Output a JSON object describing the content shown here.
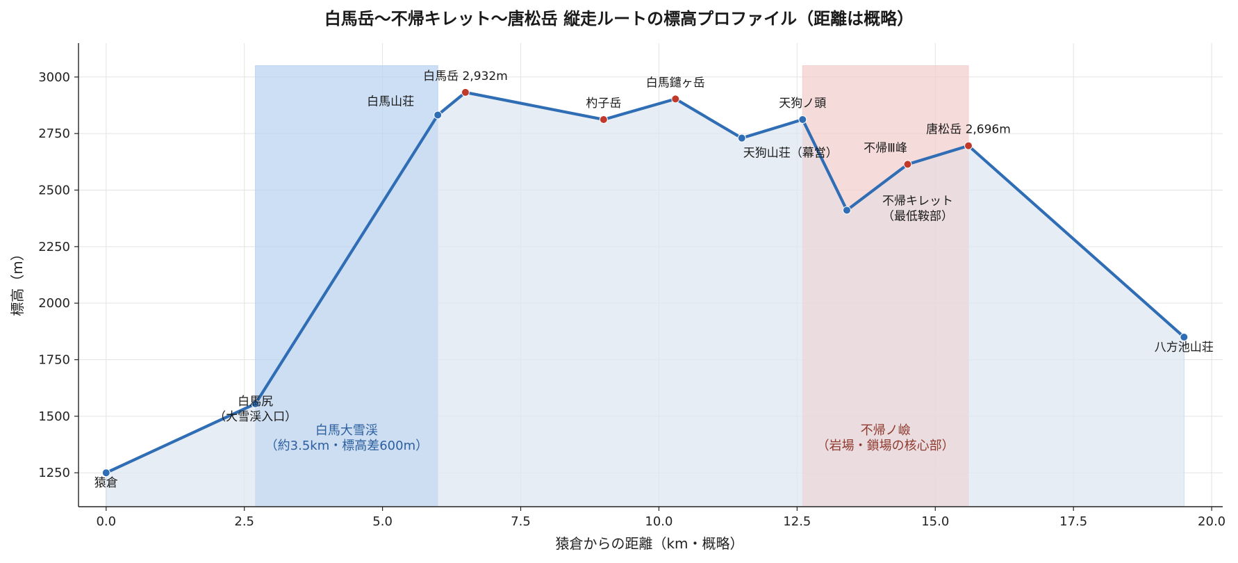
{
  "chart_data": {
    "type": "line",
    "title": "白馬岳〜不帰キレット〜唐松岳 縦走ルートの標高プロファイル（距離は概略）",
    "xlabel": "猿倉からの距離（km・概略）",
    "ylabel": "標高（m）",
    "xlim": [
      -0.5,
      20.2
    ],
    "ylim": [
      1100,
      3150
    ],
    "xticks": [
      0.0,
      2.5,
      5.0,
      7.5,
      10.0,
      12.5,
      15.0,
      17.5,
      20.0
    ],
    "xtick_labels": [
      "0.0",
      "2.5",
      "5.0",
      "7.5",
      "10.0",
      "12.5",
      "15.0",
      "17.5",
      "20.0"
    ],
    "yticks": [
      1250,
      1500,
      1750,
      2000,
      2250,
      2500,
      2750,
      3000
    ],
    "ytick_labels": [
      "1250",
      "1500",
      "1750",
      "2000",
      "2250",
      "2500",
      "2750",
      "3000"
    ],
    "grid": true,
    "line_color": "#2f6db5",
    "fill_color": "#dfe7f1",
    "points": [
      {
        "x": 0.0,
        "y": 1250,
        "label": "猿倉",
        "kind": "waypoint",
        "anchor": "below"
      },
      {
        "x": 2.7,
        "y": 1555,
        "label": "白馬尻\n（大雪渓入口）",
        "kind": "waypoint",
        "anchor": "at"
      },
      {
        "x": 6.0,
        "y": 2832,
        "label": "白馬山荘",
        "kind": "waypoint",
        "anchor": "left"
      },
      {
        "x": 6.5,
        "y": 2932,
        "label": "白馬岳 2,932m",
        "kind": "summit",
        "anchor": "above"
      },
      {
        "x": 9.0,
        "y": 2812,
        "label": "杓子岳",
        "kind": "summit",
        "anchor": "above"
      },
      {
        "x": 10.3,
        "y": 2903,
        "label": "白馬鑓ヶ岳",
        "kind": "summit",
        "anchor": "above"
      },
      {
        "x": 11.5,
        "y": 2730,
        "label": "天狗山荘（幕営）",
        "kind": "waypoint",
        "anchor": "below-right"
      },
      {
        "x": 12.6,
        "y": 2812,
        "label": "天狗ノ頭",
        "kind": "waypoint",
        "anchor": "above"
      },
      {
        "x": 13.4,
        "y": 2411,
        "label": "不帰キレット\n（最低鞍部）",
        "kind": "waypoint",
        "anchor": "right"
      },
      {
        "x": 14.5,
        "y": 2614,
        "label": "不帰Ⅲ峰",
        "kind": "summit",
        "anchor": "above-left"
      },
      {
        "x": 15.6,
        "y": 2696,
        "label": "唐松岳 2,696m",
        "kind": "summit",
        "anchor": "above"
      },
      {
        "x": 19.5,
        "y": 1850,
        "label": "八方池山荘",
        "kind": "waypoint",
        "anchor": "below"
      }
    ],
    "point_colors": {
      "waypoint": "#2f6db5",
      "summit": "#c0392b"
    },
    "bands": [
      {
        "x0": 2.7,
        "x1": 6.0,
        "y_top": 3050,
        "label": "白馬大雪渓\n（約3.5km・標高差600m）",
        "fill": "#b9d3f1",
        "label_color": "#2c5f9e",
        "label_y": 1420
      },
      {
        "x0": 12.6,
        "x1": 15.6,
        "y_top": 3050,
        "label": "不帰ノ嶮\n（岩場・鎖場の核心部）",
        "fill": "#f1cfcc",
        "label_color": "#8e3a2e",
        "label_y": 1420
      }
    ]
  }
}
